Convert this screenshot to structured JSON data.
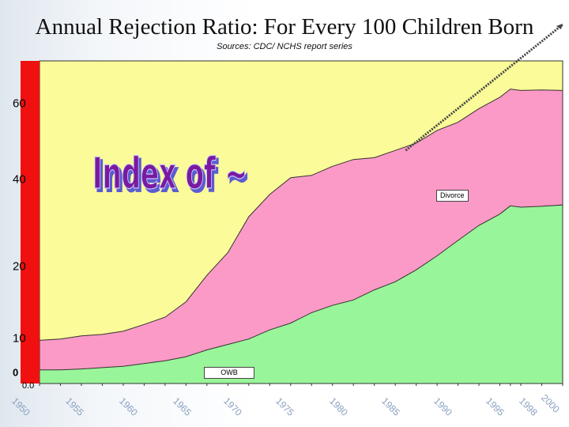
{
  "chart_data": {
    "type": "area",
    "title": "Annual Rejection Ratio: For Every 100 Children Born",
    "subtitle": "Sources: CDC/ NCHS report series",
    "x": [
      1950,
      1952,
      1954,
      1956,
      1958,
      1960,
      1962,
      1964,
      1966,
      1968,
      1970,
      1972,
      1974,
      1976,
      1978,
      1980,
      1982,
      1984,
      1986,
      1988,
      1990,
      1992,
      1994,
      1995,
      1996,
      1998,
      2000
    ],
    "series": [
      {
        "name": "OWB",
        "values": [
          3,
          3,
          3.2,
          3.5,
          3.8,
          4.4,
          5,
          5.9,
          7.4,
          8.6,
          9.8,
          11.8,
          13.3,
          15.6,
          17.2,
          18.4,
          20.6,
          22.4,
          25,
          28.1,
          31.5,
          34.8,
          37.3,
          39.1,
          38.8,
          39,
          39.3
        ],
        "color": "#99f599"
      },
      {
        "name": "Divorce",
        "values": [
          9.5,
          9.8,
          10.5,
          10.8,
          11.5,
          13,
          14.6,
          18,
          23.8,
          28.8,
          36.7,
          41.6,
          45.3,
          45.8,
          47.8,
          49.3,
          49.7,
          51.3,
          52.9,
          55.7,
          57.5,
          60.5,
          63,
          64.8,
          64.5,
          64.6,
          64.5
        ],
        "color": "#fb9ac6"
      },
      {
        "name": "",
        "values": [
          71,
          71,
          71,
          71,
          71,
          71,
          71,
          71,
          71,
          71,
          71,
          71,
          71,
          71,
          71,
          71,
          71,
          71,
          71,
          71,
          71,
          71,
          71,
          71,
          71,
          71,
          71
        ],
        "color": "#fbfb99"
      }
    ],
    "y_ticks": [
      "60",
      "40",
      "20",
      "10",
      "0"
    ],
    "y_min_label": "0.0",
    "x_tick_labels": [
      "1950",
      "1955",
      "1960",
      "1965",
      "1970",
      "1975",
      "1980",
      "1985",
      "1990",
      "1995",
      "1998",
      "2000"
    ],
    "trend_line": {
      "from": [
        1985,
        51.3
      ],
      "to": [
        2000,
        79
      ]
    },
    "overlay_text": "Index of ~",
    "legend_placement": "inline labels",
    "grid": false
  }
}
